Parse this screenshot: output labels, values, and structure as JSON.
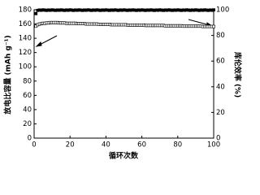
{
  "chart_data": {
    "type": "scatter",
    "x_label": "循环次数",
    "y_label": "放电比容量 (mAh g⁻¹)",
    "y2_label": "库伦效率 (%)",
    "x": [
      1,
      2,
      3,
      4,
      5,
      6,
      7,
      8,
      9,
      10,
      11,
      12,
      13,
      14,
      15,
      16,
      17,
      18,
      19,
      20,
      21,
      22,
      23,
      24,
      25,
      26,
      27,
      28,
      29,
      30,
      31,
      32,
      33,
      34,
      35,
      36,
      37,
      38,
      39,
      40,
      41,
      42,
      43,
      44,
      45,
      46,
      47,
      48,
      49,
      50,
      51,
      52,
      53,
      54,
      55,
      56,
      57,
      58,
      59,
      60,
      61,
      62,
      63,
      64,
      65,
      66,
      67,
      68,
      69,
      70,
      71,
      72,
      73,
      74,
      75,
      76,
      77,
      78,
      79,
      80,
      81,
      82,
      83,
      84,
      85,
      86,
      87,
      88,
      89,
      90,
      91,
      92,
      93,
      94,
      95,
      96,
      97,
      98,
      99,
      100
    ],
    "series": [
      {
        "color": "#000000",
        "marker": "open-square",
        "values": [
          157,
          159,
          160,
          160.5,
          161,
          161,
          161.5,
          161.5,
          162,
          162,
          162,
          162,
          162,
          161.5,
          161.5,
          161.5,
          161.5,
          161,
          161,
          161,
          161,
          161,
          161,
          160.5,
          160.5,
          160.5,
          160.5,
          160.5,
          160,
          160,
          160,
          160,
          160,
          160,
          160,
          159.5,
          159.5,
          159.5,
          159.5,
          159.5,
          159.5,
          159.5,
          159,
          159,
          159,
          159,
          159,
          159,
          159,
          159,
          159,
          158.5,
          158.5,
          158.5,
          158.5,
          158.5,
          158.5,
          158.5,
          158.5,
          158.5,
          158.5,
          158,
          158,
          158,
          158,
          158,
          158,
          158,
          158,
          158,
          158,
          158,
          157.5,
          157.5,
          157.5,
          157.5,
          157.5,
          157.5,
          157.5,
          157.5,
          157.5,
          157.5,
          157,
          157,
          157,
          157,
          157,
          157,
          157,
          157,
          157,
          157,
          157,
          156.5,
          156.5,
          156.5,
          156.5,
          156.5,
          156.5,
          156.5
        ]
      },
      {
        "color": "#000000",
        "marker": "filled-square",
        "axis": "y2",
        "values": [
          97,
          99.5,
          99.8,
          99.6,
          99.9,
          99.7,
          99.5,
          99.8,
          99.6,
          99.9,
          99.7,
          99.5,
          99.8,
          99.6,
          99.9,
          99.7,
          99.5,
          99.8,
          99.6,
          99.9,
          99.7,
          99.5,
          99.8,
          99.6,
          99.9,
          99.7,
          99.5,
          99.8,
          99.6,
          99.9,
          99.7,
          99.5,
          99.8,
          99.6,
          99.9,
          99.7,
          99.5,
          99.8,
          99.6,
          99.9,
          99.7,
          99.5,
          99.8,
          99.6,
          99.9,
          99.7,
          99.5,
          99.8,
          99.6,
          99.9,
          99.7,
          99.5,
          99.8,
          99.6,
          99.9,
          99.7,
          99.5,
          99.8,
          99.6,
          99.9,
          99.7,
          99.5,
          99.8,
          99.6,
          99.9,
          99.7,
          99.5,
          99.8,
          99.6,
          99.9,
          99.7,
          99.5,
          99.8,
          99.6,
          99.9,
          99.7,
          99.5,
          99.8,
          99.6,
          99.9,
          99.7,
          99.5,
          99.8,
          99.6,
          99.9,
          99.7,
          99.5,
          99.8,
          99.6,
          99.9,
          99.7,
          99.5,
          99.8,
          99.6,
          99.9,
          99.7,
          99.5,
          99.8,
          99.6,
          99.9
        ]
      }
    ],
    "xlim": [
      0,
      100
    ],
    "xticks": [
      0,
      20,
      40,
      60,
      80,
      100
    ],
    "ylim": [
      0,
      180
    ],
    "yticks": [
      0,
      20,
      40,
      60,
      80,
      100,
      120,
      140,
      160,
      180
    ],
    "y2lim": [
      0,
      100
    ],
    "y2ticks": [
      0,
      20,
      40,
      60,
      80,
      100
    ]
  }
}
